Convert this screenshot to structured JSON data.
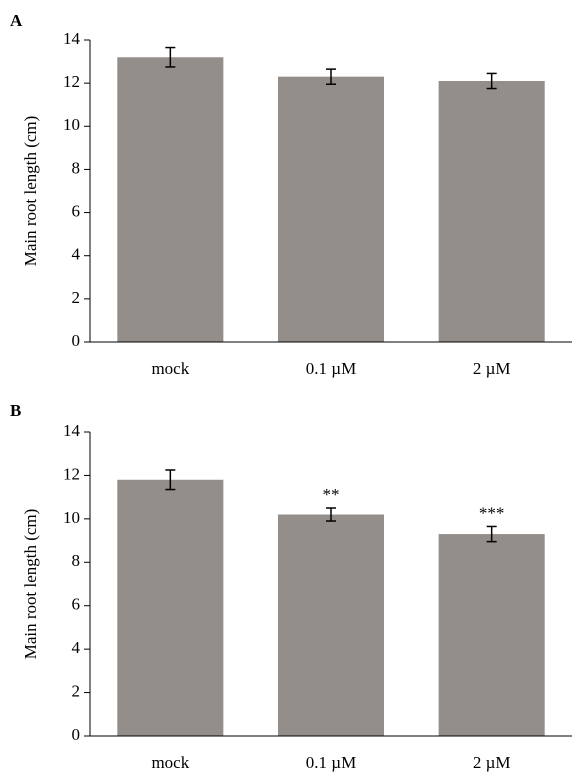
{
  "chart_data": [
    {
      "type": "bar",
      "panel": "A",
      "ylabel": "Main root length (cm)",
      "categories": [
        "mock",
        "0.1 µM",
        "2 µM"
      ],
      "values": [
        13.2,
        12.3,
        12.1
      ],
      "errors": [
        0.45,
        0.35,
        0.35
      ],
      "color": "#948e8a",
      "ylim": [
        0,
        14
      ],
      "yticks": [
        0,
        2,
        4,
        6,
        8,
        10,
        12,
        14
      ]
    },
    {
      "type": "bar",
      "panel": "B",
      "ylabel": "Main root length (cm)",
      "categories": [
        "mock",
        "0.1 µM",
        "2 µM"
      ],
      "values": [
        11.8,
        10.2,
        9.3
      ],
      "errors": [
        0.45,
        0.3,
        0.35
      ],
      "significance": [
        null,
        "**",
        "***"
      ],
      "color": "#948e8a",
      "ylim": [
        0,
        14
      ],
      "yticks": [
        0,
        2,
        4,
        6,
        8,
        10,
        12,
        14
      ]
    }
  ]
}
